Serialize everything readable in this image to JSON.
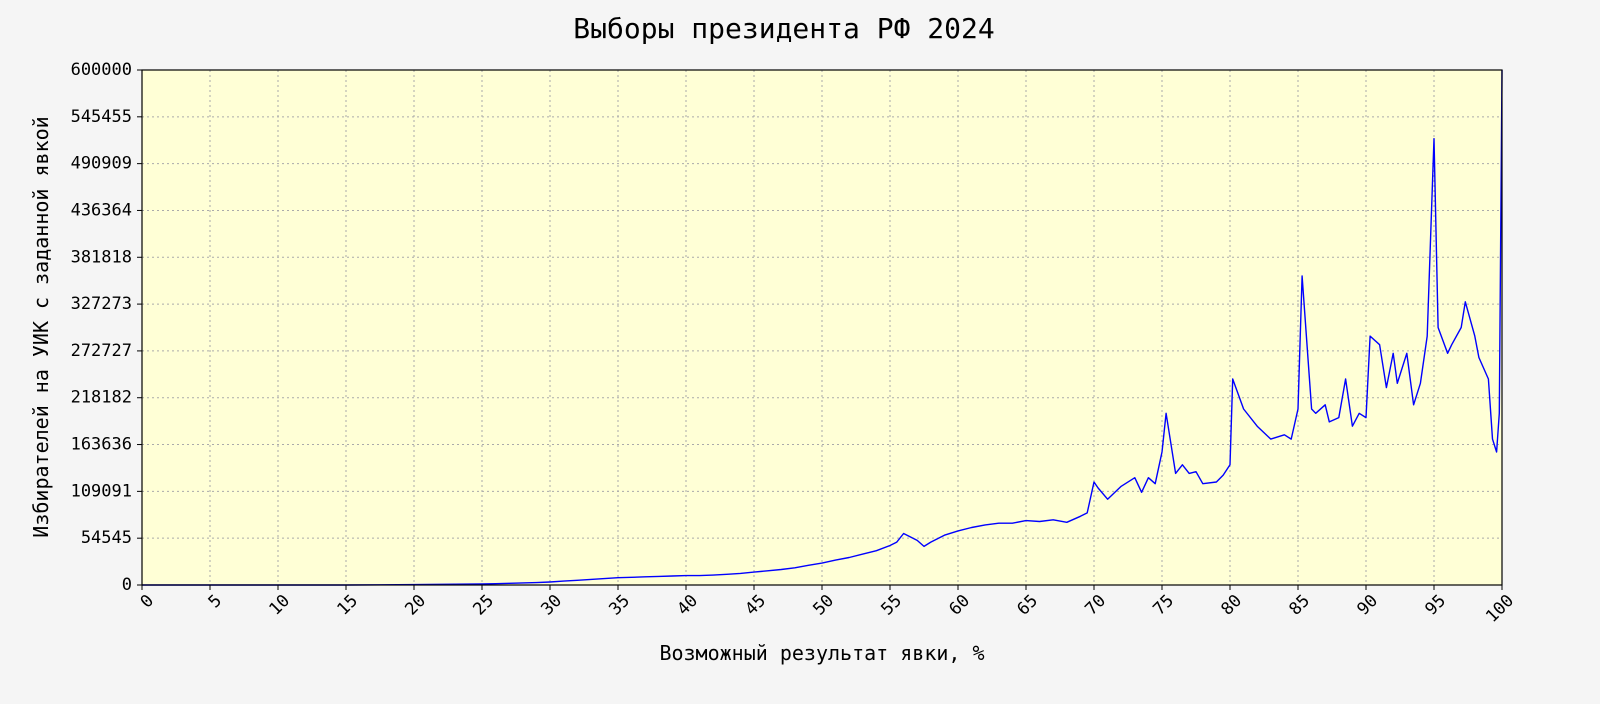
{
  "chart_data": {
    "type": "line",
    "title": "Выборы президента РФ 2024",
    "xlabel": "Возможный результат явки, %",
    "ylabel": "Избирателей на УИК с заданной явкой",
    "xlim": [
      0,
      100
    ],
    "ylim": [
      0,
      600000
    ],
    "x_ticks": [
      "0",
      "5",
      "10",
      "15",
      "20",
      "25",
      "30",
      "35",
      "40",
      "45",
      "50",
      "55",
      "60",
      "65",
      "70",
      "75",
      "80",
      "85",
      "90",
      "95",
      "100"
    ],
    "y_ticks": [
      "0",
      "54545",
      "109091",
      "163636",
      "218182",
      "272727",
      "327273",
      "381818",
      "436364",
      "490909",
      "545455",
      "600000"
    ],
    "grid": true,
    "plot_background": "#ffffd6",
    "line_color": "#0000ff",
    "series": [
      {
        "x": [
          0,
          5,
          10,
          15,
          20,
          22,
          24,
          25,
          26,
          27,
          28,
          29,
          30,
          31,
          32,
          33,
          34,
          35,
          36,
          37,
          38,
          39,
          40,
          41,
          42,
          43,
          44,
          45,
          46,
          47,
          48,
          49,
          50,
          51,
          52,
          53,
          54,
          55,
          55.5,
          56,
          57,
          57.5,
          58,
          59,
          60,
          61,
          62,
          63,
          64,
          65,
          66,
          67,
          68,
          69,
          69.5,
          70,
          70.3,
          71,
          72,
          73,
          73.5,
          74,
          74.5,
          75,
          75.3,
          76,
          76.5,
          77,
          77.5,
          78,
          79,
          79.5,
          80,
          80.2,
          81,
          82,
          83,
          84,
          84.5,
          85,
          85.3,
          86,
          86.3,
          87,
          87.3,
          88,
          88.5,
          89,
          89.5,
          90,
          90.3,
          91,
          91.5,
          92,
          92.3,
          93,
          93.5,
          94,
          94.5,
          95,
          95.3,
          96,
          96.3,
          97,
          97.3,
          98,
          98.3,
          99,
          99.3,
          99.6,
          99.8,
          100
        ],
        "values": [
          0,
          0,
          0,
          0,
          500,
          800,
          1000,
          1200,
          1500,
          2000,
          2500,
          2800,
          3500,
          4500,
          5500,
          6500,
          7500,
          8500,
          9000,
          9500,
          10000,
          10500,
          11000,
          11000,
          11500,
          12500,
          13500,
          15000,
          16500,
          18000,
          20000,
          23000,
          25500,
          29000,
          32000,
          36000,
          40000,
          46000,
          50000,
          60000,
          52000,
          45000,
          50000,
          58000,
          63000,
          67000,
          70000,
          72000,
          72000,
          75000,
          74000,
          76000,
          73000,
          80000,
          84000,
          120000,
          113000,
          100000,
          115000,
          125000,
          108000,
          125000,
          118000,
          155000,
          200000,
          130000,
          140000,
          130000,
          132000,
          118000,
          120000,
          128000,
          140000,
          240000,
          205000,
          185000,
          170000,
          175000,
          170000,
          205000,
          360000,
          205000,
          200000,
          210000,
          190000,
          195000,
          240000,
          185000,
          200000,
          195000,
          290000,
          280000,
          230000,
          270000,
          235000,
          270000,
          210000,
          235000,
          290000,
          520000,
          300000,
          270000,
          280000,
          300000,
          330000,
          290000,
          265000,
          240000,
          170000,
          155000,
          200000,
          600000
        ]
      }
    ]
  }
}
